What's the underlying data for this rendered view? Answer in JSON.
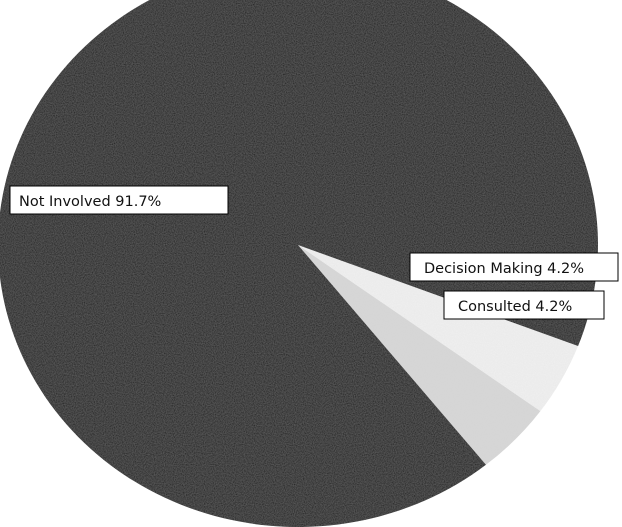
{
  "chart_data": {
    "type": "pie",
    "slices": [
      {
        "label": "Not Involved 91.7%",
        "value": 91.7,
        "color": "#000000"
      },
      {
        "label": "Decision Making 4.2%",
        "value": 4.2,
        "color": "#f1f1f1"
      },
      {
        "label": "Consulted 4.2%",
        "value": 4.2,
        "color": "#d8d8d8"
      }
    ],
    "title": "",
    "legend": "none"
  }
}
